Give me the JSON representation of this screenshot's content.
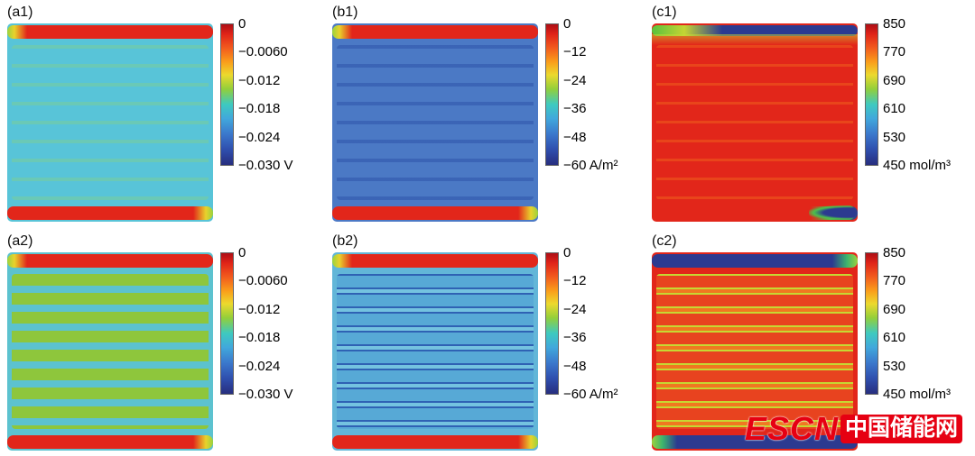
{
  "watermark": {
    "logo_text": "ESCN",
    "site_text": "中国储能网",
    "color": "#e60012"
  },
  "colors": {
    "colormap_top_red": "#e02418",
    "colormap_bottom_blue": "#272e7e",
    "field_cyan": "#58c4d8",
    "field_blue": "#4b79c5",
    "field_red": "#e2261a",
    "channel_green": "#8ec63c",
    "edge_dark_blue": "#2c3a90"
  },
  "chart_data": [
    {
      "type": "heatmap",
      "label": "(a1)",
      "colormap": "jet",
      "unit": "V",
      "colorbar_tick_labels": [
        "0",
        "−0.0060",
        "−0.012",
        "−0.018",
        "−0.024",
        "−0.030 V"
      ],
      "colorbar_tick_values": [
        0,
        -0.006,
        -0.012,
        -0.018,
        -0.024,
        -0.03
      ],
      "range": [
        -0.03,
        0
      ],
      "legend_position": "right",
      "field_description": "nearly uniform light-cyan interior with faint horizontal serpentine banding; red band along top edge (green tip at left) and red band along bottom edge (green tip at right)"
    },
    {
      "type": "heatmap",
      "label": "(b1)",
      "colormap": "jet",
      "unit": "A/m²",
      "colorbar_tick_labels": [
        "0",
        "−12",
        "−24",
        "−36",
        "−48",
        "−60 A/m²"
      ],
      "colorbar_tick_values": [
        0,
        -12,
        -24,
        -36,
        -48,
        -60
      ],
      "range": [
        -60,
        0
      ],
      "legend_position": "right",
      "field_description": "nearly uniform medium-blue interior with faint darker serpentine banding; red bands along top and bottom edges with yellow-green corner transitions"
    },
    {
      "type": "heatmap",
      "label": "(c1)",
      "colormap": "jet",
      "unit": "mol/m³",
      "colorbar_tick_labels": [
        "850",
        "770",
        "690",
        "610",
        "530",
        "450 mol/m³"
      ],
      "colorbar_tick_values": [
        850,
        770,
        690,
        610,
        530,
        450
      ],
      "range": [
        450,
        850
      ],
      "legend_position": "right",
      "field_description": "nearly uniform red interior; thin dark-blue strip along top edge with green-yellow transition at left; dark-blue patch with green rim at bottom-right corner"
    },
    {
      "type": "heatmap",
      "label": "(a2)",
      "colormap": "jet",
      "unit": "V",
      "colorbar_tick_labels": [
        "0",
        "−0.0060",
        "−0.012",
        "−0.018",
        "−0.024",
        "−0.030 V"
      ],
      "colorbar_tick_values": [
        0,
        -0.006,
        -0.012,
        -0.018,
        -0.024,
        -0.03
      ],
      "range": [
        -0.03,
        0
      ],
      "legend_position": "right",
      "field_description": "cyan interior crossed by green horizontal serpentine-channel stripes; red bands along top and bottom edges with green tips"
    },
    {
      "type": "heatmap",
      "label": "(b2)",
      "colormap": "jet",
      "unit": "A/m²",
      "colorbar_tick_labels": [
        "0",
        "−12",
        "−24",
        "−36",
        "−48",
        "−60 A/m²"
      ],
      "colorbar_tick_values": [
        0,
        -12,
        -24,
        -36,
        -48,
        -60
      ],
      "range": [
        -60,
        0
      ],
      "legend_position": "right",
      "field_description": "light-blue interior with serpentine channel legs outlined in darker blue; red bands along top and bottom edges with green tips"
    },
    {
      "type": "heatmap",
      "label": "(c2)",
      "colormap": "jet",
      "unit": "mol/m³",
      "colorbar_tick_labels": [
        "850",
        "770",
        "690",
        "610",
        "530",
        "450 mol/m³"
      ],
      "colorbar_tick_values": [
        850,
        770,
        690,
        610,
        530,
        450
      ],
      "range": [
        450,
        850
      ],
      "legend_position": "right",
      "field_description": "red serpentine channel bars edged in yellow-green on orange gaps; dark-blue strips along top edge (green blob at right) and bottom edge (green blob at left)"
    }
  ]
}
